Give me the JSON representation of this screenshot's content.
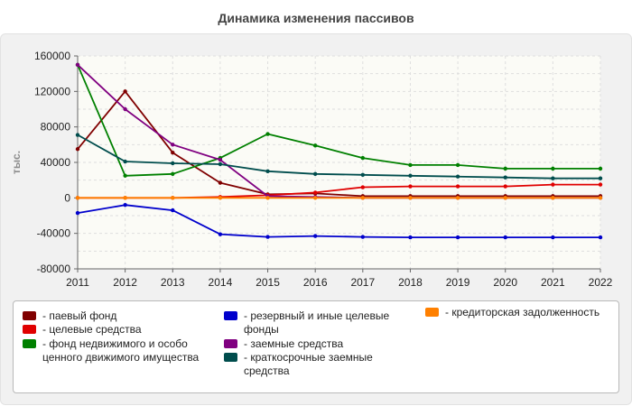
{
  "title": "Динамика изменения пассивов",
  "chart_data": {
    "type": "line",
    "title": "Динамика изменения пассивов",
    "xlabel": "",
    "ylabel": "тыс.",
    "ylim": [
      -80000,
      160000
    ],
    "yticks": [
      -80000,
      -40000,
      0,
      40000,
      80000,
      120000,
      160000
    ],
    "x": [
      "2011",
      "2012",
      "2013",
      "2014",
      "2015",
      "2016",
      "2017",
      "2018",
      "2019",
      "2020",
      "2021",
      "2022"
    ],
    "grid": true,
    "legend_position": "bottom",
    "series": [
      {
        "name": "паевый фонд",
        "color": "#800000",
        "values": [
          55000,
          120000,
          51000,
          17000,
          4000,
          5000,
          2000,
          2000,
          2000,
          2000,
          2000,
          2000
        ]
      },
      {
        "name": "целевые средства",
        "color": "#e00000",
        "values": [
          0,
          0,
          0,
          1000,
          3000,
          6000,
          12000,
          13000,
          13000,
          13000,
          15000,
          15000
        ]
      },
      {
        "name": "фонд недвижимого и особо ценного движимого имущества",
        "color": "#008000",
        "values": [
          150000,
          25000,
          27000,
          45000,
          72000,
          59000,
          45000,
          37000,
          37000,
          33000,
          33000,
          33000
        ]
      },
      {
        "name": "резервный и иные целевые фонды",
        "color": "#0000cc",
        "values": [
          -17000,
          -8000,
          -14000,
          -41000,
          -44000,
          -43000,
          -44000,
          -44500,
          -44500,
          -44500,
          -44500,
          -44500
        ]
      },
      {
        "name": "заемные средства",
        "color": "#800080",
        "values": [
          150000,
          100000,
          60000,
          43000,
          2000,
          1000,
          0,
          0,
          0,
          0,
          0,
          0
        ]
      },
      {
        "name": "краткосрочные заемные средства",
        "color": "#004d4d",
        "values": [
          71000,
          41000,
          39000,
          38000,
          30000,
          27000,
          26000,
          25000,
          24000,
          23000,
          22000,
          22000
        ]
      },
      {
        "name": "кредиторская задолженность",
        "color": "#ff8000",
        "values": [
          0,
          0,
          0,
          0,
          0,
          0,
          0,
          0,
          0,
          0,
          0,
          0
        ]
      }
    ]
  }
}
